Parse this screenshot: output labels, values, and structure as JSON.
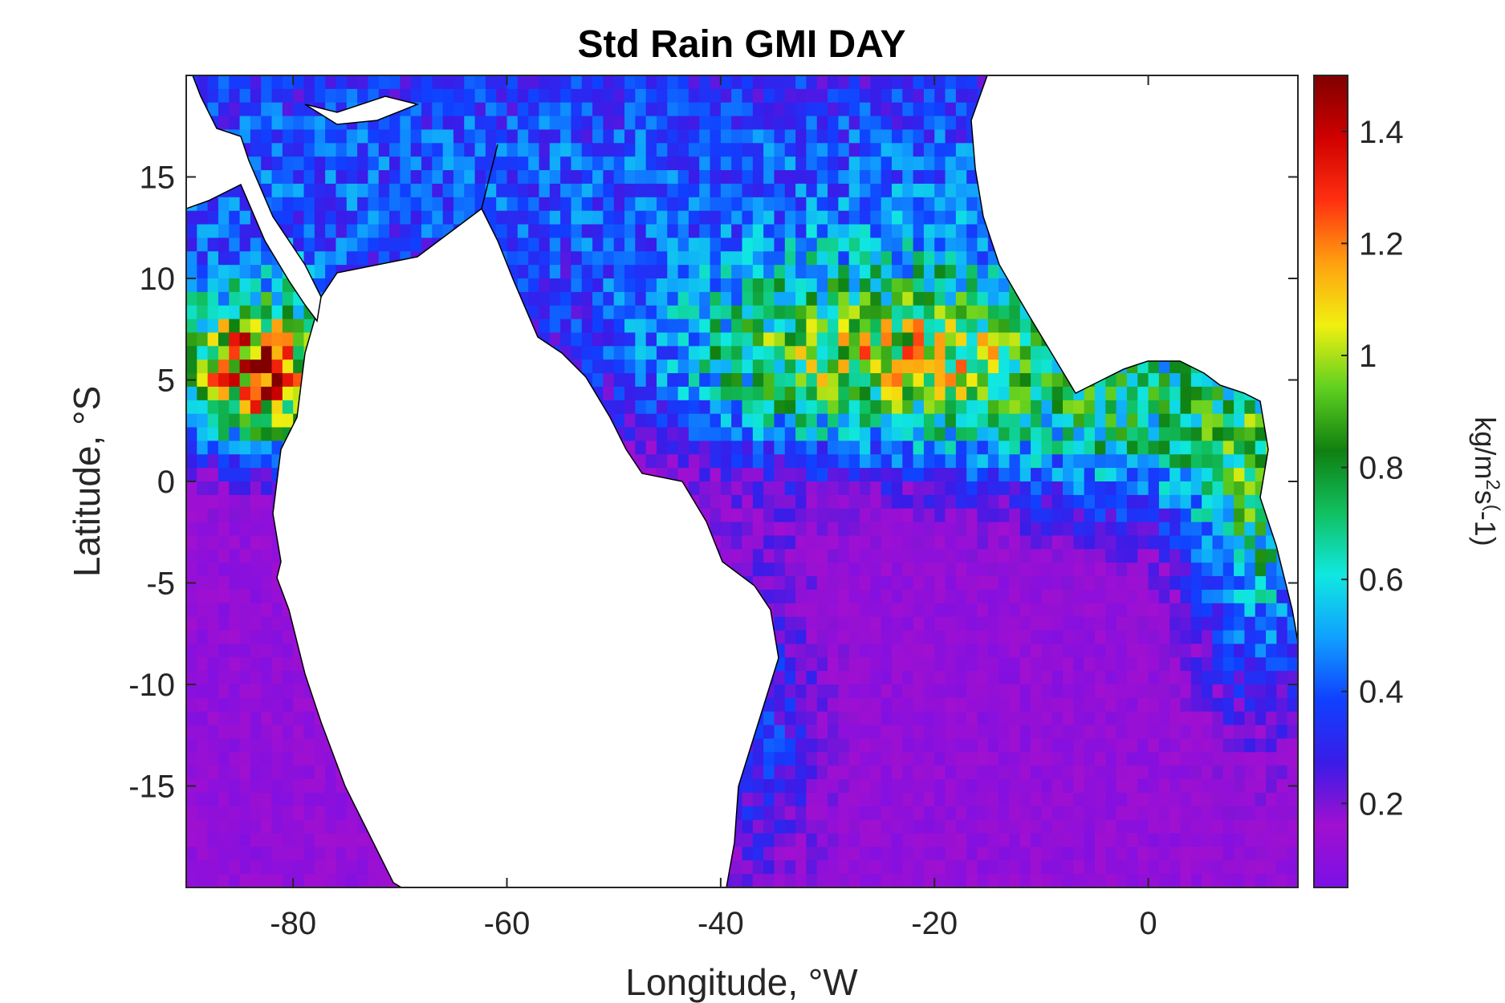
{
  "chart_data": {
    "type": "heatmap",
    "title": "Std Rain GMI DAY",
    "xlabel": "Longitude, °W",
    "ylabel": "Latitude, °S",
    "xlim": [
      -90,
      14
    ],
    "ylim": [
      -20,
      20
    ],
    "x_ticks": [
      -80,
      -60,
      -40,
      -20,
      0
    ],
    "x_tick_labels": [
      "-80",
      "-60",
      "-40",
      "-20",
      "0"
    ],
    "y_ticks": [
      15,
      10,
      5,
      0,
      -5,
      -10,
      -15
    ],
    "y_tick_labels": [
      "15",
      "10",
      "5",
      "0",
      "-5",
      "-10",
      "-15"
    ],
    "colorbar": {
      "label_parts": [
        "kg/m",
        "2",
        "s",
        "(",
        "-1)"
      ],
      "range": [
        0.05,
        1.5
      ],
      "ticks": [
        0.2,
        0.4,
        0.6,
        0.8,
        1,
        1.2,
        1.4
      ],
      "tick_labels": [
        "0.2",
        "0.4",
        "0.6",
        "0.8",
        "1",
        "1.2",
        "1.4"
      ],
      "colormap": [
        "#7a10e6",
        "#a010d0",
        "#3a1ce8",
        "#1040ff",
        "#10a0ff",
        "#10e8e0",
        "#10c060",
        "#108010",
        "#60d020",
        "#f0f010",
        "#ffa010",
        "#ff3010",
        "#d00000",
        "#800000"
      ]
    },
    "land_color": "#ffffff",
    "grid": false,
    "description_of_field": "Rainband maxima near 5°N over the eastern Pacific (about -85 to -78) and across the Atlantic (-40 to -10); lower values south of the equator."
  }
}
